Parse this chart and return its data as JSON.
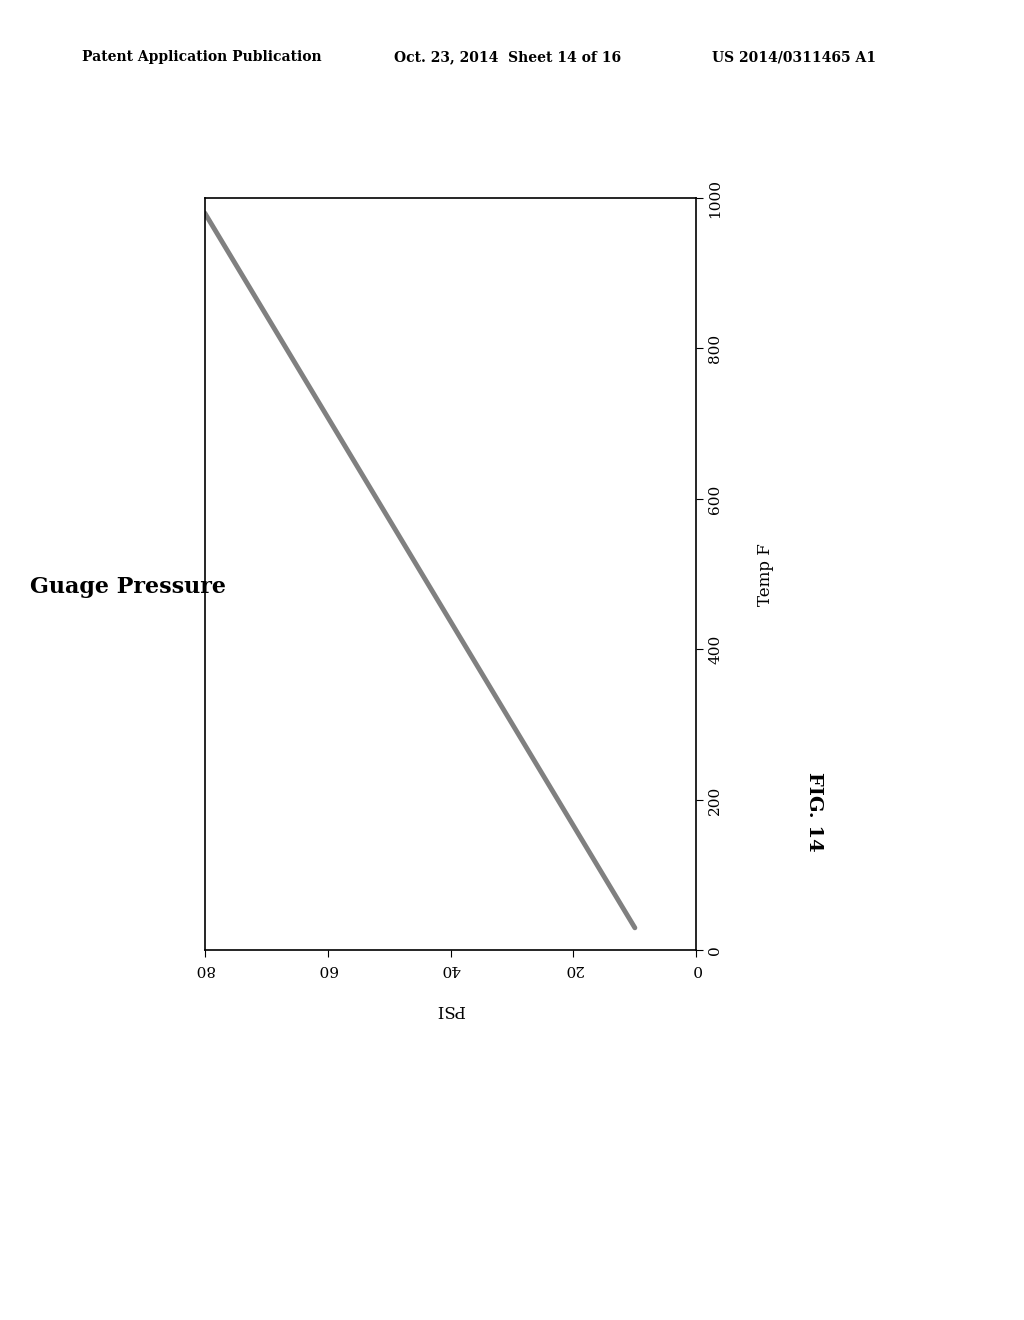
{
  "header_left": "Patent Application Publication",
  "header_mid": "Oct. 23, 2014  Sheet 14 of 16",
  "header_right": "US 2014/0311465 A1",
  "ylabel_left": "Guage Pressure",
  "xlabel_bottom": "PSI",
  "ylabel_right": "Temp F",
  "fig_caption": "FIG. 14",
  "x_ticks": [
    0,
    20,
    40,
    60,
    80
  ],
  "x_lim": [
    0,
    80
  ],
  "y_ticks": [
    0,
    200,
    400,
    600,
    800,
    1000
  ],
  "y_lim": [
    0,
    1000
  ],
  "line_x": [
    80,
    10
  ],
  "line_y": [
    980,
    30
  ],
  "line_color": "#808080",
  "line_width": 3.5,
  "background_color": "#ffffff",
  "plot_bg": "#ffffff",
  "header_fontsize": 10,
  "axis_label_fontsize": 12,
  "tick_fontsize": 11,
  "ylabel_left_fontsize": 16,
  "fig_caption_fontsize": 14
}
